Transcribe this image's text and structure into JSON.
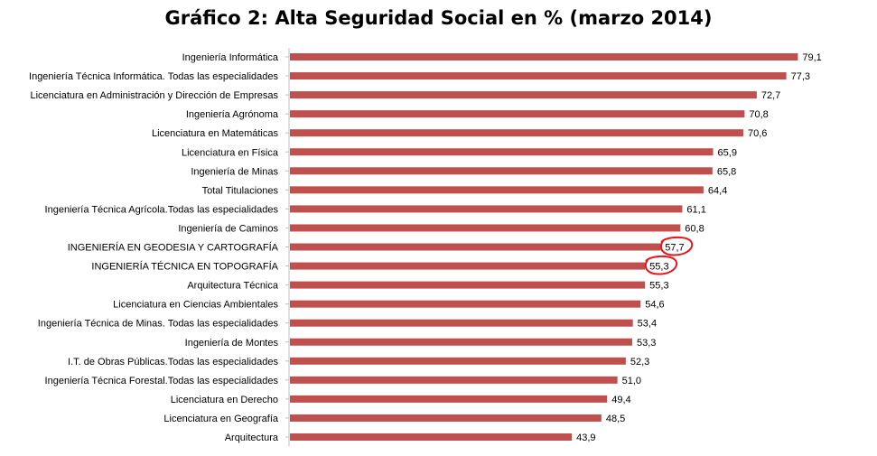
{
  "chart_data": {
    "type": "bar",
    "orientation": "horizontal",
    "title": "Gráfico 2: Alta Seguridad Social en % (marzo 2014)",
    "xlabel": "",
    "ylabel": "",
    "grid": false,
    "legend": "none",
    "bar_color": "#C0504D",
    "annotation_color": "#E8151B",
    "highlighted_categories": [
      "INGENIERÍA  EN GEODESIA  Y CARTOGRAFÍA",
      "INGENIERÍA  TÉCNICA  EN TOPOGRAFÍA"
    ],
    "categories": [
      "Ingeniería Informática",
      "Ingeniería Técnica Informática.  Todas las especialidades",
      "Licenciatura en Administración  y Dirección de Empresas",
      "Ingeniería Agrónoma",
      "Licenciatura en Matemáticas",
      "Licenciatura  en Física",
      "Ingeniería de Minas",
      "Total Titulaciones",
      "Ingeniería Técnica Agrícola.Todas las especialidades",
      "Ingeniería de Caminos",
      "INGENIERÍA  EN GEODESIA  Y CARTOGRAFÍA",
      "INGENIERÍA  TÉCNICA  EN TOPOGRAFÍA",
      "Arquitectura Técnica",
      "Licenciatura  en Ciencias Ambientales",
      "Ingeniería Técnica de Minas. Todas las especialidades",
      "Ingeniería de Montes",
      "I.T. de Obras Públicas.Todas las especialidades",
      "Ingeniería Técnica Forestal.Todas las especialidades",
      "Licenciatura  en Derecho",
      "Licenciatura en Geografía",
      "Arquitectura"
    ],
    "values": [
      79.1,
      77.3,
      72.7,
      70.8,
      70.6,
      65.9,
      65.8,
      64.4,
      61.1,
      60.8,
      57.7,
      55.3,
      55.3,
      54.6,
      53.4,
      53.3,
      52.3,
      51.0,
      49.4,
      48.5,
      43.9
    ],
    "value_labels": [
      "79,1",
      "77,3",
      "72,7",
      "70,8",
      "70,6",
      "65,9",
      "65,8",
      "64,4",
      "61,1",
      "60,8",
      "57,7",
      "55,3",
      "55,3",
      "54,6",
      "53,4",
      "53,3",
      "52,3",
      "51,0",
      "49,4",
      "48,5",
      "43,9"
    ]
  }
}
